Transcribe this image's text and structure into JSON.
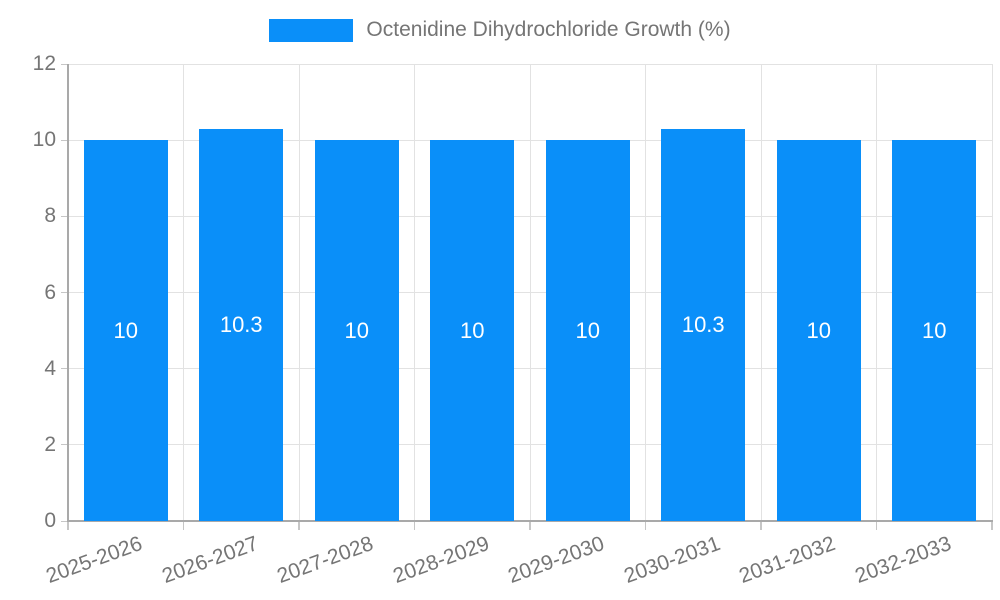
{
  "legend": {
    "label": "Octenidine Dihydrochloride Growth (%)"
  },
  "chart_data": {
    "type": "bar",
    "title": "Octenidine Dihydrochloride Growth (%)",
    "categories": [
      "2025-2026",
      "2026-2027",
      "2027-2028",
      "2028-2029",
      "2029-2030",
      "2030-2031",
      "2031-2032",
      "2032-2033"
    ],
    "values": [
      10,
      10.3,
      10,
      10,
      10,
      10.3,
      10,
      10
    ],
    "value_labels": [
      "10",
      "10.3",
      "10",
      "10",
      "10",
      "10.3",
      "10",
      "10"
    ],
    "xlabel": "",
    "ylabel": "",
    "ylim": [
      0,
      12
    ],
    "yticks": [
      0,
      2,
      4,
      6,
      8,
      10,
      12
    ],
    "grid": true,
    "legend_position": "top-center",
    "bar_color": "#0a8ff9",
    "value_label_color": "#ffffff",
    "axis_text_color": "#757575",
    "gridline_color": "#e2e2e2",
    "axis_line_color": "#a9a9a9"
  }
}
